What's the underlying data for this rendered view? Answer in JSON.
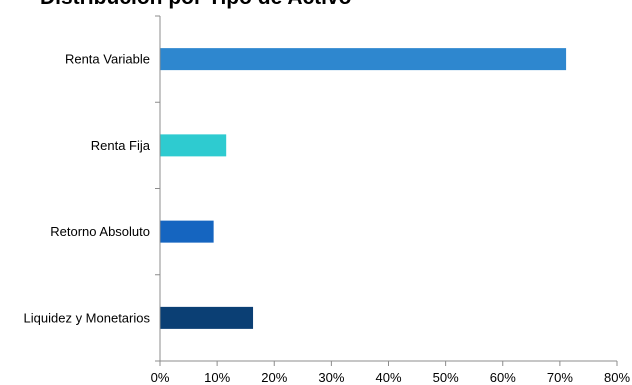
{
  "chart_data": {
    "type": "bar",
    "orientation": "horizontal",
    "title": "Distribución por Tipo de Activo",
    "categories": [
      "Renta Variable",
      "Renta Fija",
      "Retorno Absoluto",
      "Liquidez y Monetarios"
    ],
    "values": [
      71,
      11.5,
      9.3,
      16.2
    ],
    "unit": "%",
    "xlim": [
      0,
      80
    ],
    "xticks": [
      "0%",
      "10%",
      "20%",
      "30%",
      "40%",
      "50%",
      "60%",
      "70%",
      "80%"
    ],
    "xlabel": "",
    "ylabel": "",
    "grid": false,
    "legend": "none",
    "colors": [
      "#2e87cf",
      "#2ecbd0",
      "#1565c0",
      "#0b3f74"
    ]
  }
}
